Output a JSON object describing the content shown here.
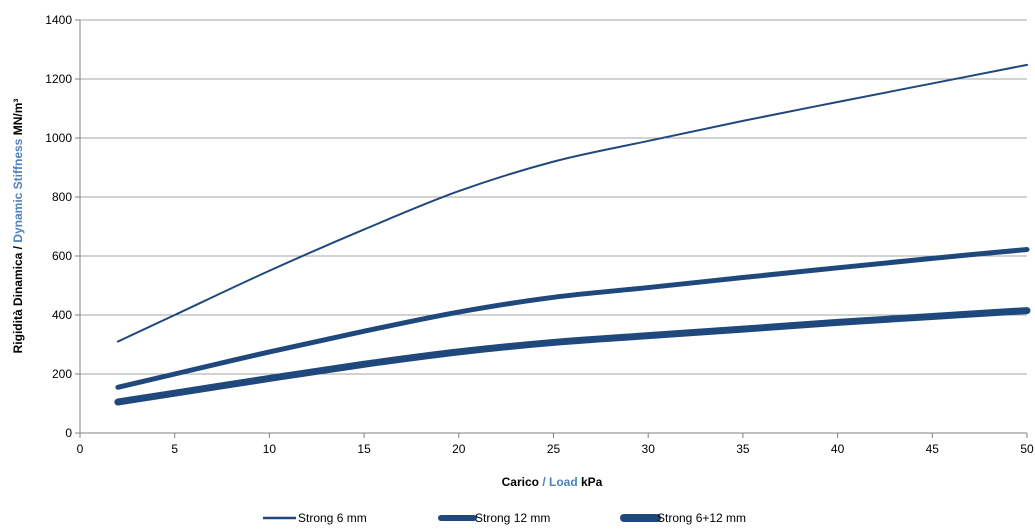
{
  "chart_data": {
    "type": "line",
    "title": "",
    "xlabel": {
      "part1": "Carico",
      "sep": " / ",
      "part2": "Load",
      "unit": " kPa"
    },
    "ylabel": {
      "part1": "Rigidità Dinamica",
      "sep": " / ",
      "part2": "Dynamic Stiffness",
      "unit": "  MN/m³"
    },
    "xlim": [
      0,
      50
    ],
    "ylim": [
      0,
      1400
    ],
    "xticks": [
      0,
      5,
      10,
      15,
      20,
      25,
      30,
      35,
      40,
      45,
      50
    ],
    "yticks": [
      0,
      200,
      400,
      600,
      800,
      1000,
      1200,
      1400
    ],
    "grid": {
      "horizontal": true,
      "vertical": false
    },
    "legend_position": "bottom",
    "colors": {
      "series": "#1f497d",
      "accent_text": "#4f81bd",
      "grid": "#a6a6a6"
    },
    "series": [
      {
        "name": "Strong 6 mm",
        "style": "thin",
        "x": [
          2,
          5,
          10,
          15,
          20,
          25,
          30,
          35,
          40,
          45,
          50
        ],
        "y": [
          310,
          400,
          550,
          690,
          820,
          920,
          990,
          1058,
          1122,
          1185,
          1248
        ]
      },
      {
        "name": "Strong 12 mm",
        "style": "medium",
        "x": [
          2,
          5,
          10,
          15,
          20,
          25,
          30,
          35,
          40,
          45,
          50
        ],
        "y": [
          155,
          200,
          275,
          345,
          410,
          460,
          493,
          527,
          560,
          592,
          622
        ]
      },
      {
        "name": "Strong 6+12 mm",
        "style": "thick",
        "x": [
          2,
          5,
          10,
          15,
          20,
          25,
          30,
          35,
          40,
          45,
          50
        ],
        "y": [
          105,
          135,
          185,
          233,
          275,
          307,
          330,
          352,
          375,
          395,
          415
        ]
      }
    ]
  }
}
